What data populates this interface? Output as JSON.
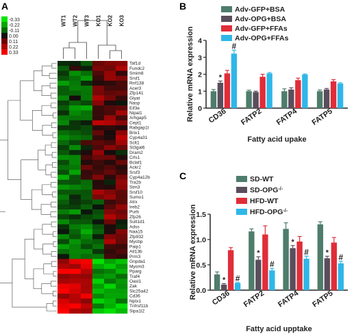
{
  "panel_labels": {
    "a": "A",
    "b": "B",
    "c": "C"
  },
  "heatmap": {
    "columns": [
      "WT1",
      "WT2",
      "WT3",
      "KO1",
      "KO2",
      "KO3"
    ],
    "genes": [
      "Taf1d",
      "Fundc2",
      "Smim8",
      "Srsf1",
      "Rnf138",
      "Acer3",
      "Zfp141",
      "Glyat",
      "Nasp",
      "Eif3e",
      "Nipal1",
      "Arhgap5",
      "Cept1",
      "Rabgap1l",
      "Brix1",
      "Cyp4a31",
      "Sclt1",
      "St3gal6",
      "Dram2",
      "Crls1",
      "Bclaf1",
      "Ackr2",
      "Srsf3",
      "Cyp4a12b",
      "Tra2b",
      "Stm3",
      "Srsf10",
      "Sumo1",
      "Atrx",
      "Ireb2",
      "Purb",
      "Zfp26",
      "Sult1d1",
      "Adss",
      "Naa15",
      "Zfp932",
      "Mycbp",
      "Paip1",
      "Atl13b",
      "Prrn3",
      "Gnpda1",
      "Myom3",
      "Pparg",
      "Traf4",
      "Oasl1",
      "Zak",
      "Slc25a42",
      "Cd36",
      "Nptx1",
      "Tnfrsf11b",
      "Sipa1l2"
    ],
    "colorbar": {
      "labels": [
        "-0.33",
        "-0.22",
        "-0.11",
        "0.00",
        "0.11",
        "0.22",
        "0.33"
      ],
      "colors": [
        "#00e600",
        "#00a800",
        "#006b00",
        "#101010",
        "#6e0000",
        "#b00000",
        "#f00000"
      ]
    }
  },
  "chart_data": [
    {
      "type": "bar",
      "panel": "B",
      "categories": [
        "CD36",
        "FATP2",
        "FATP4",
        "FATP5"
      ],
      "series": [
        {
          "name": "Adv-GFP+BSA",
          "color": "#4e7d6b",
          "values": [
            1.0,
            1.0,
            1.0,
            1.0
          ],
          "errors": [
            0.1,
            0.06,
            0.14,
            0.07
          ],
          "marks": [
            "",
            "",
            "",
            ""
          ]
        },
        {
          "name": "Adv-OPG+BSA",
          "color": "#5a4e5c",
          "values": [
            1.5,
            0.95,
            1.1,
            1.1
          ],
          "errors": [
            0.1,
            0.05,
            0.1,
            0.06
          ],
          "marks": [
            "*",
            "",
            "",
            ""
          ]
        },
        {
          "name": "Adv-GFP+FFAs",
          "color": "#e02d39",
          "values": [
            2.05,
            1.85,
            1.65,
            1.58
          ],
          "errors": [
            0.18,
            0.15,
            0.12,
            0.1
          ],
          "marks": [
            "",
            "",
            "",
            ""
          ]
        },
        {
          "name": "Adv-OPG+FFAs",
          "color": "#2fb7e8",
          "values": [
            3.22,
            2.05,
            1.98,
            1.45
          ],
          "errors": [
            0.2,
            0.05,
            0.04,
            0.05
          ],
          "marks": [
            "#",
            "",
            "",
            ""
          ]
        }
      ],
      "ylim": [
        0,
        4
      ],
      "yticks": [
        "0",
        "1",
        "2",
        "3",
        "4"
      ],
      "ylabel": "Relative  mRNA expression",
      "xlabel": "Fatty acid upake",
      "legend_position": "top"
    },
    {
      "type": "bar",
      "panel": "C",
      "categories": [
        "CD36",
        "FATP2",
        "FATP4",
        "FATP5"
      ],
      "series": [
        {
          "name": "SD-WT",
          "name_sup": "",
          "color": "#4e7d6b",
          "values": [
            0.31,
            1.16,
            1.21,
            1.3
          ],
          "errors": [
            0.05,
            0.05,
            0.12,
            0.05
          ],
          "marks": [
            "",
            "",
            "",
            ""
          ]
        },
        {
          "name": "SD-OPG",
          "name_sup": "-/-",
          "color": "#5a4e5c",
          "values": [
            0.11,
            0.6,
            0.83,
            0.63
          ],
          "errors": [
            0.02,
            0.06,
            0.05,
            0.04
          ],
          "marks": [
            "*",
            "*",
            "*",
            "*"
          ]
        },
        {
          "name": "HFD-WT",
          "name_sup": "",
          "color": "#e02d39",
          "values": [
            0.79,
            1.1,
            0.96,
            0.94
          ],
          "errors": [
            0.05,
            0.17,
            0.1,
            0.1
          ],
          "marks": [
            "",
            "",
            "",
            ""
          ]
        },
        {
          "name": "HFD-OPG",
          "name_sup": "-/-",
          "color": "#2fb7e8",
          "values": [
            0.14,
            0.39,
            0.62,
            0.53
          ],
          "errors": [
            0.01,
            0.04,
            0.05,
            0.04
          ],
          "marks": [
            "#",
            "#",
            "#",
            "#"
          ]
        }
      ],
      "ylim": [
        0,
        1.5
      ],
      "yticks": [
        "0.0",
        "0.5",
        "1.0",
        "1.5"
      ],
      "ylabel": "Relative  mRNA expression",
      "xlabel": "Fatty acid upptake",
      "legend_position": "top"
    }
  ]
}
